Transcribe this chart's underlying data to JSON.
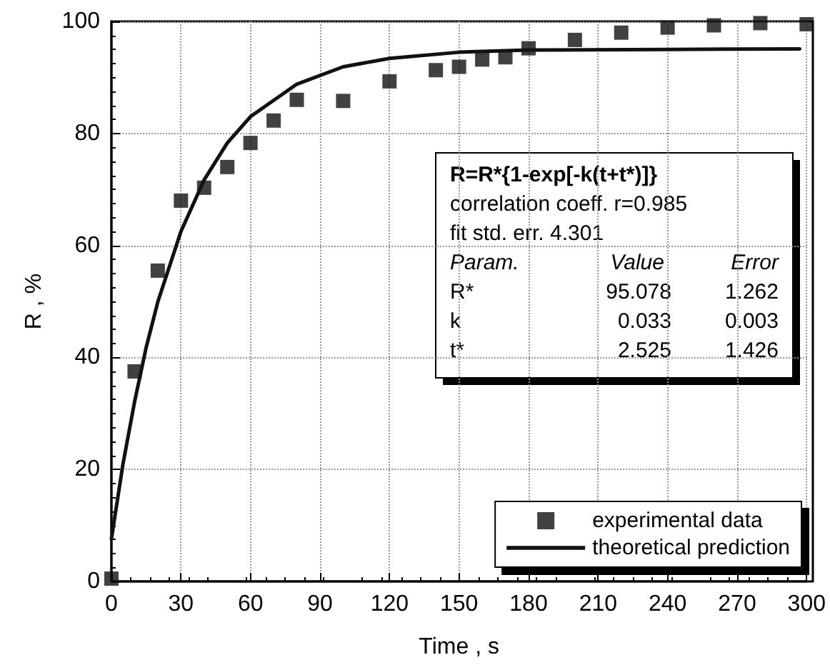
{
  "chart_data": {
    "type": "scatter",
    "xlabel": "Time , s",
    "ylabel": "R , %",
    "xlim": [
      0,
      300
    ],
    "xticks": [
      0,
      30,
      60,
      90,
      120,
      150,
      180,
      210,
      240,
      270,
      300
    ],
    "ylim": [
      0,
      100
    ],
    "yticks": [
      0,
      20,
      40,
      60,
      80,
      100
    ],
    "grid": true,
    "legend": "bottom right",
    "marker": "square",
    "series": [
      {
        "name": "experimental data",
        "color": "#111111",
        "x": [
          0,
          10,
          20,
          30,
          40,
          50,
          60,
          70,
          80,
          100,
          120,
          140,
          150,
          160,
          170,
          180,
          200,
          220,
          240,
          260,
          280,
          300
        ],
        "values": [
          0.5,
          37.5,
          55.5,
          68,
          70.3,
          74,
          78.3,
          82.3,
          86,
          85.8,
          89.3,
          91.3,
          91.9,
          93.2,
          93.6,
          95.2,
          96.7,
          98,
          98.9,
          99.3,
          99.7,
          99.5
        ]
      },
      {
        "name": "theoretical prediction",
        "type": "line",
        "color": "#111111",
        "marker": "none",
        "line_style": "solid",
        "x": [
          0,
          5,
          10,
          15,
          20,
          30,
          40,
          50,
          60,
          80,
          100,
          120,
          150,
          180,
          240,
          297
        ],
        "values": [
          7.6,
          21,
          32.1,
          41.8,
          49.9,
          62.5,
          71.7,
          78.3,
          83,
          88.8,
          91.9,
          93.4,
          94.5,
          94.9,
          95,
          95.1
        ]
      }
    ],
    "annotations": [
      "R=R*{1-exp[-k(t+t*)]}",
      "correlation coeff. r=0.985",
      "fit std. err. 4.301",
      "Param.",
      "Value",
      "Error",
      "R*",
      "95.078",
      "1.262",
      "k",
      "0.033",
      "0.003",
      "t*",
      "2.525",
      "1.426"
    ]
  }
}
